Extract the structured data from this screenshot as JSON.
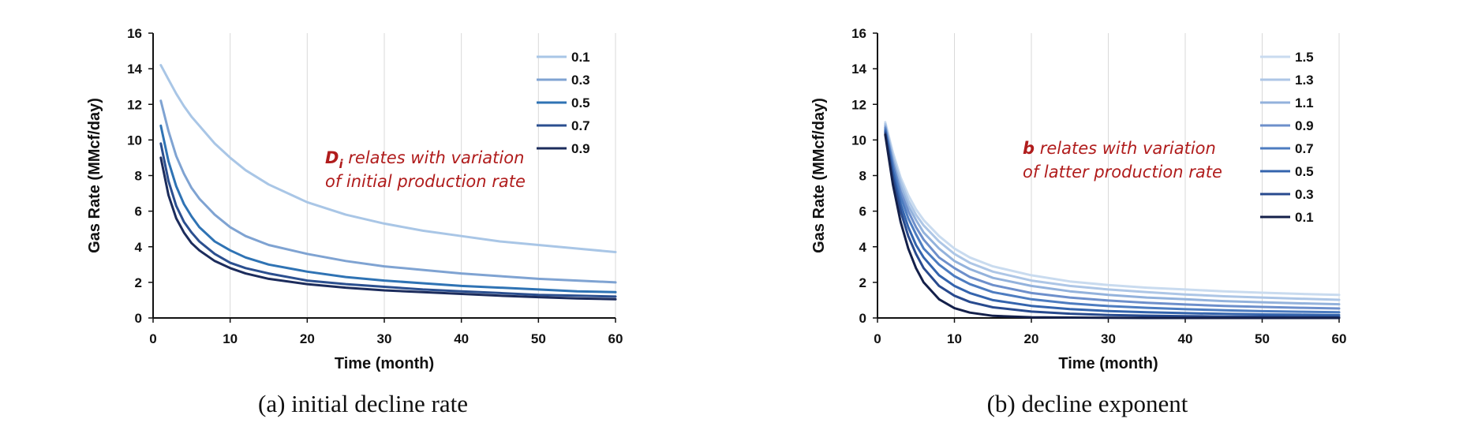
{
  "chart_data": [
    {
      "type": "line",
      "caption": "(a) initial decline rate",
      "xlabel": "Time (month)",
      "ylabel": "Gas Rate (MMcf/day)",
      "xlim": [
        0,
        60
      ],
      "ylim": [
        0,
        16
      ],
      "xticks": [
        0,
        10,
        20,
        30,
        40,
        50,
        60
      ],
      "yticks": [
        0,
        2,
        4,
        6,
        8,
        10,
        12,
        14,
        16
      ],
      "grid": "vertical",
      "legend_position": "top-right",
      "annotation": {
        "symbol": "D",
        "subscript": "i",
        "line1_rest": " relates with variation",
        "line2": "of initial production rate"
      },
      "x": [
        1,
        2,
        3,
        4,
        5,
        6,
        8,
        10,
        12,
        15,
        20,
        25,
        30,
        35,
        40,
        45,
        50,
        55,
        60
      ],
      "series": [
        {
          "name": "0.1",
          "color": "#a9c6e6",
          "values": [
            14.2,
            13.4,
            12.6,
            11.9,
            11.3,
            10.8,
            9.8,
            9.0,
            8.3,
            7.5,
            6.5,
            5.8,
            5.3,
            4.9,
            4.6,
            4.3,
            4.1,
            3.9,
            3.7
          ]
        },
        {
          "name": "0.3",
          "color": "#7fa3d2",
          "values": [
            12.2,
            10.5,
            9.1,
            8.1,
            7.3,
            6.7,
            5.8,
            5.1,
            4.6,
            4.1,
            3.6,
            3.2,
            2.9,
            2.7,
            2.5,
            2.35,
            2.2,
            2.1,
            2.0
          ]
        },
        {
          "name": "0.5",
          "color": "#2f73b4",
          "values": [
            10.8,
            8.8,
            7.4,
            6.4,
            5.7,
            5.1,
            4.3,
            3.8,
            3.4,
            3.0,
            2.6,
            2.3,
            2.1,
            1.95,
            1.8,
            1.7,
            1.6,
            1.5,
            1.45
          ]
        },
        {
          "name": "0.7",
          "color": "#2b4f8f",
          "values": [
            9.8,
            7.7,
            6.3,
            5.4,
            4.8,
            4.3,
            3.6,
            3.1,
            2.8,
            2.5,
            2.1,
            1.9,
            1.75,
            1.6,
            1.5,
            1.4,
            1.3,
            1.25,
            1.2
          ]
        },
        {
          "name": "0.9",
          "color": "#1c2c5c",
          "values": [
            9.0,
            6.9,
            5.6,
            4.8,
            4.2,
            3.8,
            3.2,
            2.8,
            2.5,
            2.2,
            1.9,
            1.7,
            1.55,
            1.45,
            1.35,
            1.25,
            1.17,
            1.1,
            1.05
          ]
        }
      ]
    },
    {
      "type": "line",
      "caption": "(b) decline exponent",
      "xlabel": "Time (month)",
      "ylabel": "Gas Rate (MMcf/day)",
      "xlim": [
        0,
        60
      ],
      "ylim": [
        0,
        16
      ],
      "xticks": [
        0,
        10,
        20,
        30,
        40,
        50,
        60
      ],
      "yticks": [
        0,
        2,
        4,
        6,
        8,
        10,
        12,
        14,
        16
      ],
      "grid": "vertical",
      "legend_position": "top-right",
      "annotation": {
        "symbol": "b",
        "subscript": "",
        "line1_rest": " relates with variation",
        "line2": "of latter production rate"
      },
      "x": [
        1,
        2,
        3,
        4,
        5,
        6,
        8,
        10,
        12,
        15,
        20,
        25,
        30,
        35,
        40,
        45,
        50,
        55,
        60
      ],
      "series": [
        {
          "name": "1.5",
          "color": "#c9dbef",
          "values": [
            11.0,
            9.3,
            7.9,
            6.9,
            6.1,
            5.5,
            4.6,
            3.9,
            3.4,
            2.9,
            2.4,
            2.05,
            1.85,
            1.7,
            1.6,
            1.5,
            1.42,
            1.35,
            1.3
          ]
        },
        {
          "name": "1.3",
          "color": "#adc6e6",
          "values": [
            10.9,
            9.1,
            7.7,
            6.6,
            5.8,
            5.2,
            4.3,
            3.6,
            3.1,
            2.6,
            2.1,
            1.8,
            1.6,
            1.45,
            1.32,
            1.22,
            1.15,
            1.08,
            1.02
          ]
        },
        {
          "name": "1.1",
          "color": "#93b2dc",
          "values": [
            10.8,
            8.9,
            7.4,
            6.3,
            5.5,
            4.8,
            3.9,
            3.2,
            2.75,
            2.25,
            1.8,
            1.5,
            1.3,
            1.15,
            1.05,
            0.95,
            0.88,
            0.82,
            0.77
          ]
        },
        {
          "name": "0.9",
          "color": "#6d8fcb",
          "values": [
            10.7,
            8.7,
            7.1,
            6.0,
            5.1,
            4.4,
            3.4,
            2.8,
            2.3,
            1.85,
            1.4,
            1.15,
            0.98,
            0.85,
            0.76,
            0.68,
            0.62,
            0.57,
            0.53
          ]
        },
        {
          "name": "0.7",
          "color": "#4d7cc0",
          "values": [
            10.6,
            8.5,
            6.8,
            5.6,
            4.7,
            3.9,
            3.0,
            2.35,
            1.9,
            1.45,
            1.05,
            0.82,
            0.67,
            0.57,
            0.49,
            0.43,
            0.38,
            0.35,
            0.32
          ]
        },
        {
          "name": "0.5",
          "color": "#3464ad",
          "values": [
            10.5,
            8.2,
            6.4,
            5.1,
            4.1,
            3.4,
            2.4,
            1.8,
            1.4,
            1.0,
            0.68,
            0.5,
            0.39,
            0.32,
            0.27,
            0.23,
            0.2,
            0.18,
            0.16
          ]
        },
        {
          "name": "0.3",
          "color": "#284a8e",
          "values": [
            10.4,
            7.9,
            6.0,
            4.6,
            3.6,
            2.8,
            1.8,
            1.25,
            0.9,
            0.6,
            0.36,
            0.24,
            0.17,
            0.13,
            0.1,
            0.08,
            0.07,
            0.06,
            0.05
          ]
        },
        {
          "name": "0.1",
          "color": "#14204a",
          "values": [
            10.3,
            7.5,
            5.4,
            3.9,
            2.8,
            2.0,
            1.05,
            0.55,
            0.3,
            0.12,
            0.04,
            0.02,
            0.01,
            0.0,
            0.0,
            0.0,
            0.0,
            0.0,
            0.0
          ]
        }
      ]
    }
  ]
}
